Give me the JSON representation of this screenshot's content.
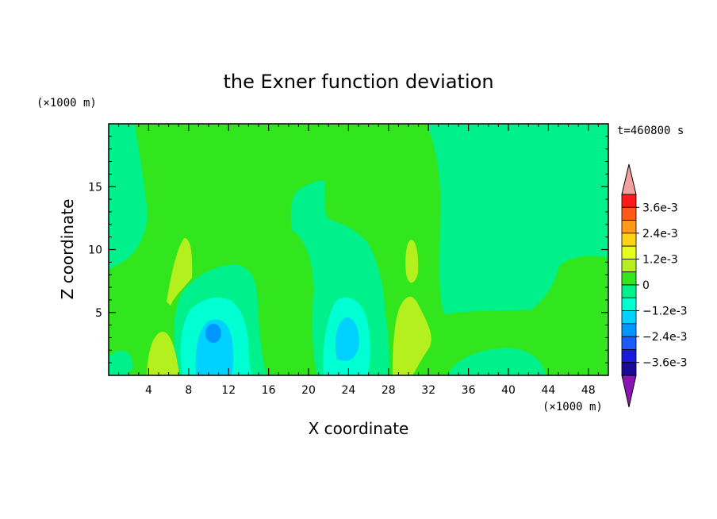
{
  "chart_data": {
    "type": "heatmap",
    "title": "the Exner function deviation",
    "xlabel": "X coordinate",
    "ylabel": "Z coordinate",
    "x_unit": "(×1000 m)",
    "y_unit": "(×1000 m)",
    "time_label": "t=460800 s",
    "xlim": [
      0,
      50
    ],
    "ylim": [
      0,
      20
    ],
    "x_ticks": [
      4,
      8,
      12,
      16,
      20,
      24,
      28,
      32,
      36,
      40,
      44,
      48
    ],
    "y_ticks": [
      5,
      10,
      15
    ],
    "colorbar": {
      "labels": [
        "3.6e-3",
        "2.4e-3",
        "1.2e-3",
        "0",
        "−1.2e-3",
        "−2.4e-3",
        "−3.6e-3"
      ],
      "levels_top_to_bottom": [
        0.0036,
        0.003,
        0.0024,
        0.0018,
        0.0012,
        0.0006,
        0,
        -0.0006,
        -0.0012,
        -0.0018,
        -0.0024,
        -0.003,
        -0.0036
      ],
      "colors_top_to_bottom": [
        "#ff1a1a",
        "#ff5a1a",
        "#ff9a1a",
        "#ffd21a",
        "#e6ff1a",
        "#b4f01e",
        "#32e61e",
        "#00f08c",
        "#00ffd2",
        "#00d2ff",
        "#0096ff",
        "#1a5aff",
        "#1a1adc",
        "#1a0a96"
      ],
      "over_color": "#f5a0a0",
      "under_color": "#8c14b4"
    },
    "regions": [
      {
        "level": "0 to 0.6e-3",
        "color": "#32e61e",
        "description": "background field"
      },
      {
        "level": "-0.6e-3 to 0",
        "color": "#00f08c",
        "x_range": [
          0,
          4
        ],
        "z_range": [
          8,
          20
        ]
      },
      {
        "level": "-0.6e-3 to 0",
        "color": "#00f08c",
        "x_range": [
          33,
          50
        ],
        "z_range": [
          5,
          20
        ]
      },
      {
        "level": "-0.6e-3 to 0",
        "color": "#00f08c",
        "x_range": [
          18,
          28
        ],
        "z_range": [
          0,
          15.5
        ]
      },
      {
        "level": "-0.6e-3 to 0",
        "color": "#00f08c",
        "x_range": [
          7,
          15
        ],
        "z_range": [
          0,
          9
        ]
      },
      {
        "level": "-1.2e-3 to -0.6e-3",
        "color": "#00ffd2",
        "x_range": [
          7.5,
          14
        ],
        "z_range": [
          0,
          6
        ]
      },
      {
        "level": "-1.8e-3 to -1.2e-3",
        "color": "#00d2ff",
        "x_range": [
          9,
          12.5
        ],
        "z_range": [
          0.5,
          5
        ]
      },
      {
        "level": "-2.4e-3 to -1.8e-3",
        "color": "#0096ff",
        "center": [
          10.7,
          3.4
        ]
      },
      {
        "level": "-1.2e-3 to -0.6e-3",
        "color": "#00ffd2",
        "x_range": [
          21.5,
          26
        ],
        "z_range": [
          0,
          6
        ]
      },
      {
        "level": "-1.8e-3 to -1.2e-3",
        "color": "#00d2ff",
        "x_range": [
          22.5,
          25
        ],
        "z_range": [
          1.5,
          4.5
        ]
      },
      {
        "level": "0.6e-3 to 1.2e-3",
        "color": "#b4f01e",
        "x_range": [
          4,
          7.5
        ],
        "z_range": [
          0,
          3.5
        ]
      },
      {
        "level": "0.6e-3 to 1.2e-3",
        "color": "#b4f01e",
        "x_range": [
          6,
          8
        ],
        "z_range": [
          5.5,
          10.5
        ]
      },
      {
        "level": "0.6e-3 to 1.2e-3",
        "color": "#b4f01e",
        "x_range": [
          28.5,
          33
        ],
        "z_range": [
          0,
          6.5
        ]
      },
      {
        "level": "0.6e-3 to 1.2e-3",
        "color": "#b4f01e",
        "x_range": [
          29.5,
          31
        ],
        "z_range": [
          6.5,
          10.5
        ]
      }
    ]
  }
}
